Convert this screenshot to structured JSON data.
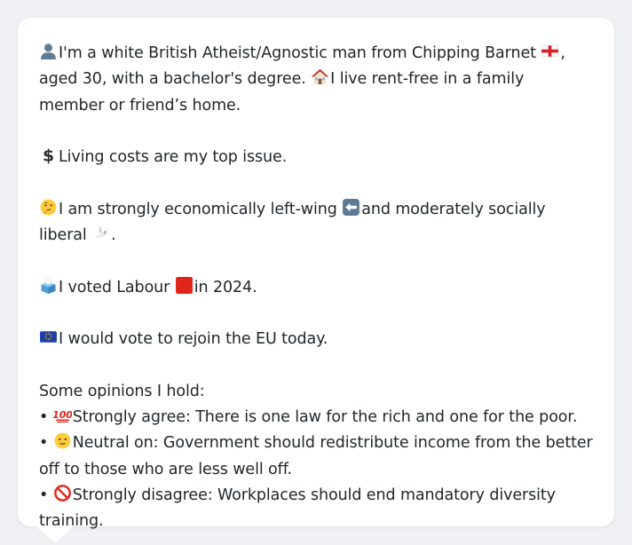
{
  "profile": {
    "intro_a": "I'm a white British Atheist/Agnostic man from Chipping Barnet",
    "intro_b": ", aged 30, with a bachelor's degree.",
    "housing": "I live rent-free in a family member or friend’s home.",
    "issue": "Living costs are my top issue.",
    "ideology_a": "I am strongly economically left-wing",
    "ideology_b": "and moderately socially liberal",
    "ideology_c": ".",
    "vote_a": "I voted Labour",
    "vote_b": "in 2024.",
    "eu": "I would vote to rejoin the EU today.",
    "opinions_heading": "Some opinions I hold:",
    "opinions": [
      {
        "bullet": "•",
        "text": "Strongly agree: There is one law for the rich and one for the poor.",
        "icon": "hundred-points-icon"
      },
      {
        "bullet": "•",
        "text": "Neutral on: Government should redistribute income from the better off to those who are less well off.",
        "icon": "neutral-face-icon"
      },
      {
        "bullet": "•",
        "text": "Strongly disagree: Workplaces should end mandatory diversity training.",
        "icon": "prohibited-icon"
      }
    ]
  },
  "colors": {
    "page_bg": "#eef0f3",
    "bubble_bg": "#ffffff",
    "text": "#222629",
    "labour_red": "#e0251b"
  },
  "icons": [
    "bust-silhouette-icon",
    "england-flag-icon",
    "house-icon",
    "dollar-sign-icon",
    "thinking-face-icon",
    "left-arrow-icon",
    "dove-icon",
    "ballot-box-icon",
    "red-square-icon",
    "eu-flag-icon",
    "hundred-points-icon",
    "neutral-face-icon",
    "prohibited-icon"
  ]
}
